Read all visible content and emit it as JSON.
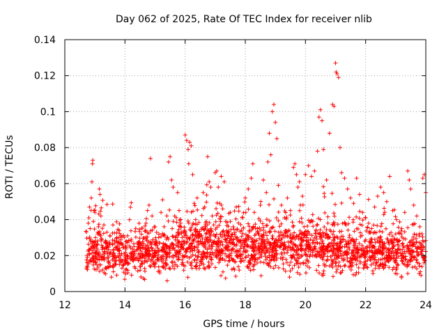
{
  "chart_data": {
    "type": "scatter",
    "title": "Day 062 of 2025, Rate Of TEC Index for receiver nlib",
    "xlabel": "GPS time / hours",
    "ylabel": "ROTI / TECUs",
    "xlim": [
      12,
      24
    ],
    "ylim": [
      0,
      0.14
    ],
    "xticks": [
      "12",
      "14",
      "16",
      "18",
      "20",
      "22",
      "24"
    ],
    "xtick_values": [
      12,
      14,
      16,
      18,
      20,
      22,
      24
    ],
    "yticks": [
      "0",
      "0.02",
      "0.04",
      "0.06",
      "0.08",
      "0.1",
      "0.12",
      "0.14"
    ],
    "ytick_values": [
      0,
      0.02,
      0.04,
      0.06,
      0.08,
      0.1,
      0.12,
      0.14
    ],
    "grid": true,
    "marker": "+",
    "series": [
      {
        "name": "ROTI",
        "color": "#ff0000",
        "points": [
          [
            12.72,
            0.013
          ],
          [
            12.75,
            0.019
          ],
          [
            12.78,
            0.038
          ],
          [
            12.8,
            0.041
          ],
          [
            12.82,
            0.047
          ],
          [
            12.84,
            0.035
          ],
          [
            12.86,
            0.028
          ],
          [
            12.88,
            0.052
          ],
          [
            12.9,
            0.061
          ],
          [
            12.92,
            0.071
          ],
          [
            12.93,
            0.073
          ],
          [
            12.95,
            0.039
          ],
          [
            12.97,
            0.045
          ],
          [
            13.0,
            0.044
          ],
          [
            13.02,
            0.03
          ],
          [
            13.05,
            0.022
          ],
          [
            13.08,
            0.018
          ],
          [
            13.1,
            0.033
          ],
          [
            13.12,
            0.036
          ],
          [
            13.15,
            0.057
          ],
          [
            13.17,
            0.054
          ],
          [
            13.2,
            0.042
          ],
          [
            13.23,
            0.029
          ],
          [
            13.25,
            0.012
          ],
          [
            13.3,
            0.037
          ],
          [
            13.35,
            0.027
          ],
          [
            13.4,
            0.033
          ],
          [
            13.45,
            0.017
          ],
          [
            13.5,
            0.031
          ],
          [
            13.55,
            0.008
          ],
          [
            13.6,
            0.021
          ],
          [
            13.7,
            0.015
          ],
          [
            13.8,
            0.019
          ],
          [
            13.9,
            0.013
          ],
          [
            14.0,
            0.018
          ],
          [
            14.1,
            0.016
          ],
          [
            14.2,
            0.021
          ],
          [
            14.3,
            0.025
          ],
          [
            14.4,
            0.019
          ],
          [
            14.5,
            0.014
          ],
          [
            14.6,
            0.024
          ],
          [
            14.7,
            0.038
          ],
          [
            14.75,
            0.045
          ],
          [
            14.8,
            0.048
          ],
          [
            14.85,
            0.074
          ],
          [
            14.9,
            0.042
          ],
          [
            15.0,
            0.036
          ],
          [
            15.05,
            0.028
          ],
          [
            15.1,
            0.022
          ],
          [
            15.2,
            0.044
          ],
          [
            15.25,
            0.051
          ],
          [
            15.3,
            0.036
          ],
          [
            15.35,
            0.016
          ],
          [
            15.4,
            0.006
          ],
          [
            15.45,
            0.072
          ],
          [
            15.5,
            0.075
          ],
          [
            15.55,
            0.062
          ],
          [
            15.6,
            0.058
          ],
          [
            15.65,
            0.042
          ],
          [
            15.7,
            0.031
          ],
          [
            15.75,
            0.055
          ],
          [
            15.8,
            0.045
          ],
          [
            15.85,
            0.038
          ],
          [
            15.9,
            0.03
          ],
          [
            15.95,
            0.024
          ],
          [
            16.0,
            0.087
          ],
          [
            16.05,
            0.084
          ],
          [
            16.1,
            0.079
          ],
          [
            16.12,
            0.071
          ],
          [
            16.15,
            0.083
          ],
          [
            16.2,
            0.081
          ],
          [
            16.25,
            0.065
          ],
          [
            16.3,
            0.049
          ],
          [
            16.35,
            0.04
          ],
          [
            16.4,
            0.052
          ],
          [
            16.45,
            0.032
          ],
          [
            16.5,
            0.028
          ],
          [
            16.55,
            0.019
          ],
          [
            16.6,
            0.055
          ],
          [
            16.65,
            0.047
          ],
          [
            16.7,
            0.039
          ],
          [
            16.75,
            0.075
          ],
          [
            16.8,
            0.061
          ],
          [
            16.85,
            0.058
          ],
          [
            16.9,
            0.042
          ],
          [
            16.95,
            0.037
          ],
          [
            17.0,
            0.066
          ],
          [
            17.05,
            0.067
          ],
          [
            17.1,
            0.058
          ],
          [
            17.15,
            0.049
          ],
          [
            17.2,
            0.064
          ],
          [
            17.25,
            0.046
          ],
          [
            17.3,
            0.061
          ],
          [
            17.35,
            0.039
          ],
          [
            17.4,
            0.025
          ],
          [
            17.5,
            0.044
          ],
          [
            17.6,
            0.036
          ],
          [
            17.7,
            0.047
          ],
          [
            17.8,
            0.028
          ],
          [
            17.9,
            0.041
          ],
          [
            18.0,
            0.052
          ],
          [
            18.1,
            0.057
          ],
          [
            18.2,
            0.063
          ],
          [
            18.25,
            0.071
          ],
          [
            18.3,
            0.044
          ],
          [
            18.4,
            0.035
          ],
          [
            18.5,
            0.048
          ],
          [
            18.6,
            0.062
          ],
          [
            18.7,
            0.055
          ],
          [
            18.75,
            0.072
          ],
          [
            18.8,
            0.088
          ],
          [
            18.85,
            0.076
          ],
          [
            18.9,
            0.1
          ],
          [
            18.95,
            0.104
          ],
          [
            19.0,
            0.094
          ],
          [
            19.05,
            0.085
          ],
          [
            19.1,
            0.059
          ],
          [
            19.2,
            0.048
          ],
          [
            19.3,
            0.041
          ],
          [
            19.4,
            0.052
          ],
          [
            19.5,
            0.045
          ],
          [
            19.6,
            0.069
          ],
          [
            19.65,
            0.071
          ],
          [
            19.7,
            0.065
          ],
          [
            19.75,
            0.058
          ],
          [
            19.8,
            0.061
          ],
          [
            19.9,
            0.053
          ],
          [
            20.0,
            0.065
          ],
          [
            20.1,
            0.07
          ],
          [
            20.2,
            0.064
          ],
          [
            20.3,
            0.067
          ],
          [
            20.4,
            0.078
          ],
          [
            20.45,
            0.097
          ],
          [
            20.5,
            0.101
          ],
          [
            20.55,
            0.095
          ],
          [
            20.6,
            0.079
          ],
          [
            20.7,
            0.062
          ],
          [
            20.8,
            0.088
          ],
          [
            20.9,
            0.104
          ],
          [
            20.95,
            0.103
          ],
          [
            21.0,
            0.127
          ],
          [
            21.02,
            0.122
          ],
          [
            21.05,
            0.121
          ],
          [
            21.1,
            0.119
          ],
          [
            21.15,
            0.08
          ],
          [
            21.2,
            0.066
          ],
          [
            21.3,
            0.063
          ],
          [
            21.4,
            0.057
          ],
          [
            21.5,
            0.052
          ],
          [
            21.6,
            0.049
          ],
          [
            21.7,
            0.063
          ],
          [
            21.8,
            0.054
          ],
          [
            21.9,
            0.044
          ],
          [
            22.0,
            0.041
          ],
          [
            22.1,
            0.038
          ],
          [
            22.2,
            0.035
          ],
          [
            22.3,
            0.047
          ],
          [
            22.4,
            0.053
          ],
          [
            22.5,
            0.058
          ],
          [
            22.6,
            0.055
          ],
          [
            22.7,
            0.05
          ],
          [
            22.8,
            0.064
          ],
          [
            22.9,
            0.045
          ],
          [
            23.0,
            0.032
          ],
          [
            23.1,
            0.028
          ],
          [
            23.2,
            0.035
          ],
          [
            23.3,
            0.044
          ],
          [
            23.4,
            0.067
          ],
          [
            23.45,
            0.062
          ],
          [
            23.5,
            0.057
          ],
          [
            23.6,
            0.048
          ],
          [
            23.7,
            0.042
          ],
          [
            23.8,
            0.036
          ],
          [
            23.9,
            0.063
          ],
          [
            23.95,
            0.065
          ],
          [
            24.0,
            0.055
          ]
        ]
      }
    ],
    "dense_band": {
      "description": "dense cloud of points between 0.005 and 0.04 across 12.7–24 h",
      "x_start": 12.7,
      "x_end": 24.0,
      "y_floor": 0.005,
      "y_base": 0.018,
      "spread": 0.012,
      "count": 2200
    }
  }
}
